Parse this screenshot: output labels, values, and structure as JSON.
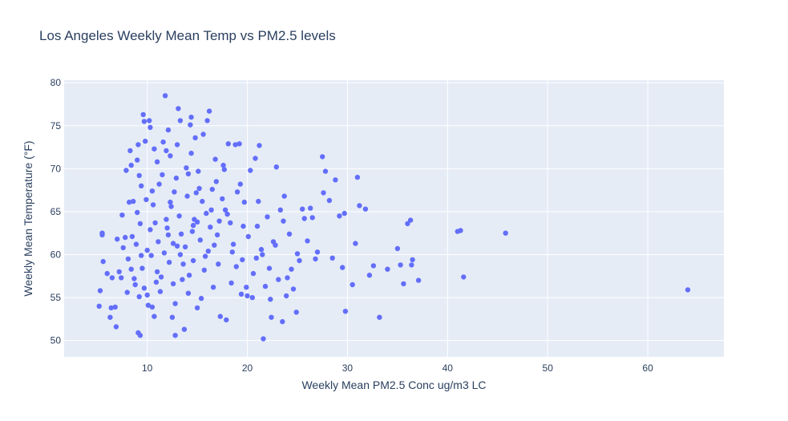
{
  "chart_data": {
    "type": "scatter",
    "title": "Los Angeles Weekly Mean Temp vs PM2.5 levels",
    "xlabel": "Weekly Mean PM2.5 Conc ug/m3 LC",
    "ylabel": "Weekly Mean Temperature (°F)",
    "xlim": [
      1.7,
      67.6
    ],
    "ylim": [
      48.1,
      80.3
    ],
    "x_ticks": [
      10,
      20,
      30,
      40,
      50,
      60
    ],
    "y_ticks": [
      50,
      55,
      60,
      65,
      70,
      75,
      80
    ],
    "grid": true,
    "plot_bg": "#e5ecf6",
    "marker_color": "#636efa",
    "points": [
      [
        5.2,
        54.0
      ],
      [
        5.3,
        55.8
      ],
      [
        5.5,
        62.5
      ],
      [
        5.5,
        62.3
      ],
      [
        5.6,
        59.2
      ],
      [
        6.0,
        57.8
      ],
      [
        6.3,
        52.7
      ],
      [
        6.4,
        53.8
      ],
      [
        6.5,
        57.3
      ],
      [
        6.8,
        53.9
      ],
      [
        6.9,
        51.6
      ],
      [
        7.0,
        61.8
      ],
      [
        7.2,
        58.0
      ],
      [
        7.4,
        57.3
      ],
      [
        7.5,
        64.6
      ],
      [
        7.8,
        62.0
      ],
      [
        7.9,
        69.8
      ],
      [
        8.0,
        55.6
      ],
      [
        8.2,
        66.1
      ],
      [
        8.3,
        72.1
      ],
      [
        8.4,
        70.4
      ],
      [
        8.5,
        62.1
      ],
      [
        8.6,
        66.2
      ],
      [
        8.8,
        56.5
      ],
      [
        9.0,
        71.0
      ],
      [
        9.1,
        72.8
      ],
      [
        9.1,
        50.9
      ],
      [
        9.2,
        69.2
      ],
      [
        9.3,
        50.6
      ],
      [
        9.4,
        59.9
      ],
      [
        9.6,
        76.3
      ],
      [
        9.7,
        75.5
      ],
      [
        9.8,
        73.2
      ],
      [
        10.0,
        55.3
      ],
      [
        10.1,
        54.1
      ],
      [
        10.2,
        75.6
      ],
      [
        10.3,
        74.8
      ],
      [
        10.4,
        59.9
      ],
      [
        10.5,
        67.4
      ],
      [
        10.7,
        52.8
      ],
      [
        10.8,
        63.7
      ],
      [
        11.0,
        70.8
      ],
      [
        11.2,
        68.2
      ],
      [
        11.4,
        57.4
      ],
      [
        11.6,
        73.1
      ],
      [
        11.8,
        78.5
      ],
      [
        11.9,
        72.1
      ],
      [
        12.1,
        74.5
      ],
      [
        12.3,
        66.1
      ],
      [
        12.5,
        52.7
      ],
      [
        12.6,
        61.3
      ],
      [
        12.8,
        50.6
      ],
      [
        13.0,
        72.8
      ],
      [
        13.1,
        77.0
      ],
      [
        13.3,
        75.6
      ],
      [
        13.5,
        57.1
      ],
      [
        13.7,
        51.3
      ],
      [
        13.8,
        60.9
      ],
      [
        14.1,
        69.4
      ],
      [
        14.3,
        75.1
      ],
      [
        14.4,
        76.0
      ],
      [
        14.6,
        63.4
      ],
      [
        14.8,
        73.6
      ],
      [
        15.0,
        53.8
      ],
      [
        15.2,
        67.7
      ],
      [
        15.5,
        66.2
      ],
      [
        15.6,
        74.0
      ],
      [
        15.8,
        59.8
      ],
      [
        16.0,
        75.6
      ],
      [
        16.2,
        76.7
      ],
      [
        16.4,
        65.2
      ],
      [
        16.6,
        56.2
      ],
      [
        16.8,
        71.1
      ],
      [
        17.0,
        62.3
      ],
      [
        17.3,
        52.8
      ],
      [
        17.5,
        66.5
      ],
      [
        17.7,
        69.9
      ],
      [
        17.9,
        52.4
      ],
      [
        18.1,
        72.9
      ],
      [
        18.3,
        63.7
      ],
      [
        18.5,
        60.3
      ],
      [
        18.8,
        72.8
      ],
      [
        19.0,
        67.3
      ],
      [
        19.2,
        72.9
      ],
      [
        19.4,
        55.4
      ],
      [
        19.6,
        63.3
      ],
      [
        19.9,
        56.2
      ],
      [
        20.0,
        55.2
      ],
      [
        20.3,
        69.8
      ],
      [
        20.5,
        55.0
      ],
      [
        20.8,
        71.2
      ],
      [
        21.0,
        63.3
      ],
      [
        21.2,
        72.7
      ],
      [
        21.4,
        60.6
      ],
      [
        21.6,
        50.2
      ],
      [
        21.8,
        56.3
      ],
      [
        22.0,
        64.4
      ],
      [
        22.2,
        58.4
      ],
      [
        22.4,
        52.7
      ],
      [
        22.6,
        61.5
      ],
      [
        22.9,
        70.2
      ],
      [
        23.1,
        57.1
      ],
      [
        23.3,
        65.2
      ],
      [
        23.5,
        52.2
      ],
      [
        23.7,
        66.8
      ],
      [
        23.9,
        55.2
      ],
      [
        24.2,
        62.4
      ],
      [
        24.4,
        58.3
      ],
      [
        24.6,
        56.0
      ],
      [
        24.9,
        53.3
      ],
      [
        25.2,
        59.3
      ],
      [
        25.5,
        65.3
      ],
      [
        25.7,
        64.2
      ],
      [
        26.0,
        61.6
      ],
      [
        26.3,
        65.4
      ],
      [
        26.5,
        64.3
      ],
      [
        27.0,
        60.3
      ],
      [
        27.5,
        71.4
      ],
      [
        27.6,
        67.2
      ],
      [
        27.8,
        69.7
      ],
      [
        28.2,
        66.3
      ],
      [
        28.5,
        59.6
      ],
      [
        28.8,
        68.7
      ],
      [
        29.2,
        64.5
      ],
      [
        29.5,
        58.5
      ],
      [
        29.7,
        64.8
      ],
      [
        29.8,
        53.4
      ],
      [
        30.5,
        56.5
      ],
      [
        30.8,
        61.3
      ],
      [
        31.0,
        69.0
      ],
      [
        31.2,
        65.7
      ],
      [
        31.8,
        65.3
      ],
      [
        32.2,
        57.6
      ],
      [
        32.6,
        58.7
      ],
      [
        33.2,
        52.7
      ],
      [
        34.0,
        58.3
      ],
      [
        35.0,
        60.7
      ],
      [
        35.3,
        58.8
      ],
      [
        35.6,
        56.6
      ],
      [
        36.0,
        63.6
      ],
      [
        36.3,
        64.0
      ],
      [
        36.4,
        58.8
      ],
      [
        36.5,
        59.4
      ],
      [
        37.1,
        57.0
      ],
      [
        41.0,
        62.7
      ],
      [
        41.3,
        62.8
      ],
      [
        41.6,
        57.4
      ],
      [
        45.8,
        62.5
      ],
      [
        64.0,
        55.9
      ],
      [
        8.9,
        61.2
      ],
      [
        9.3,
        63.6
      ],
      [
        10.6,
        65.8
      ],
      [
        11.1,
        61.5
      ],
      [
        12.0,
        63.1
      ],
      [
        12.7,
        67.3
      ],
      [
        13.4,
        62.4
      ],
      [
        14.0,
        66.8
      ],
      [
        14.7,
        64.1
      ],
      [
        15.3,
        61.7
      ],
      [
        9.5,
        58.4
      ],
      [
        10.9,
        56.8
      ],
      [
        12.2,
        59.1
      ],
      [
        13.6,
        58.9
      ],
      [
        11.5,
        69.3
      ],
      [
        13.9,
        70.1
      ],
      [
        12.4,
        65.6
      ],
      [
        16.1,
        60.4
      ],
      [
        17.2,
        63.9
      ],
      [
        18.6,
        61.2
      ],
      [
        10.3,
        62.9
      ],
      [
        11.7,
        60.2
      ],
      [
        13.2,
        64.5
      ],
      [
        14.5,
        62.7
      ],
      [
        15.9,
        64.8
      ],
      [
        9.9,
        66.4
      ],
      [
        12.9,
        68.9
      ],
      [
        15.1,
        69.7
      ],
      [
        16.5,
        67.6
      ],
      [
        17.8,
        65.2
      ],
      [
        8.1,
        59.5
      ],
      [
        8.7,
        57.2
      ],
      [
        9.7,
        56.1
      ],
      [
        11.3,
        55.7
      ],
      [
        12.6,
        56.6
      ],
      [
        14.2,
        57.6
      ],
      [
        15.7,
        58.2
      ],
      [
        17.1,
        58.9
      ],
      [
        19.5,
        59.4
      ],
      [
        21.5,
        60.0
      ],
      [
        7.6,
        60.8
      ],
      [
        9.0,
        64.9
      ],
      [
        10.0,
        60.5
      ],
      [
        11.9,
        64.1
      ],
      [
        13.0,
        61.0
      ],
      [
        14.9,
        67.2
      ],
      [
        16.3,
        63.2
      ],
      [
        18.0,
        64.7
      ],
      [
        20.1,
        62.1
      ],
      [
        22.8,
        61.1
      ],
      [
        9.4,
        68.0
      ],
      [
        10.7,
        72.3
      ],
      [
        12.3,
        71.5
      ],
      [
        14.4,
        71.8
      ],
      [
        16.9,
        68.5
      ],
      [
        19.3,
        68.2
      ],
      [
        21.1,
        66.2
      ],
      [
        23.6,
        63.9
      ],
      [
        25.0,
        60.1
      ],
      [
        26.8,
        59.5
      ],
      [
        8.4,
        58.3
      ],
      [
        9.2,
        55.1
      ],
      [
        10.5,
        53.9
      ],
      [
        12.8,
        54.3
      ],
      [
        14.1,
        55.5
      ],
      [
        15.4,
        54.9
      ],
      [
        18.4,
        56.7
      ],
      [
        20.6,
        57.8
      ],
      [
        22.3,
        54.8
      ],
      [
        24.0,
        57.3
      ],
      [
        11.0,
        58.0
      ],
      [
        12.1,
        62.3
      ],
      [
        13.3,
        60.0
      ],
      [
        14.6,
        59.3
      ],
      [
        15.0,
        63.8
      ],
      [
        16.7,
        61.1
      ],
      [
        18.9,
        58.6
      ],
      [
        20.9,
        59.6
      ],
      [
        19.7,
        66.1
      ],
      [
        17.6,
        70.4
      ]
    ]
  }
}
